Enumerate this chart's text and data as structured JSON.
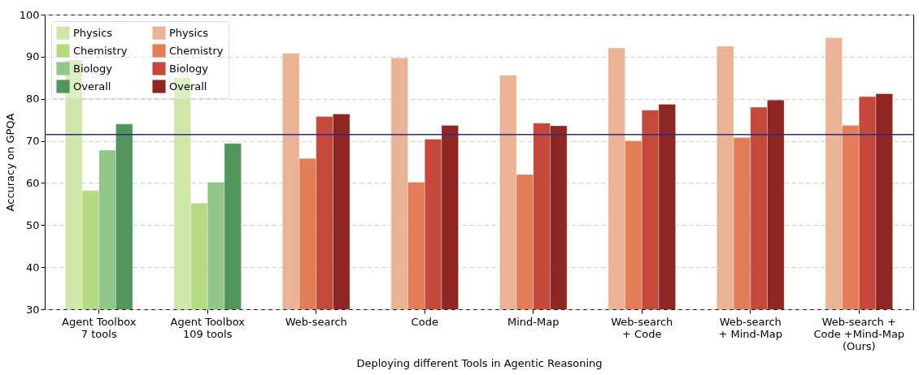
{
  "chart_data": {
    "type": "bar",
    "xlabel": "Deploying different Tools in Agentic Reasoning",
    "ylabel": "Accuracy on GPQA",
    "categories": [
      "Agent Toolbox\n7 tools",
      "Agent Toolbox\n109 tools",
      "Web-search",
      "Code",
      "Mind-Map",
      "Web-search\n+ Code",
      "Web-search\n+ Mind-Map",
      "Web-search +\nCode +Mind-Map\n(Ours)"
    ],
    "series": [
      {
        "name": "Physics",
        "color": "#cfe7a9",
        "values": [
          89.2,
          85.0,
          null,
          null,
          null,
          null,
          null,
          null
        ]
      },
      {
        "name": "Chemistry",
        "color": "#b4db82",
        "values": [
          58.2,
          55.2,
          null,
          null,
          null,
          null,
          null,
          null
        ]
      },
      {
        "name": "Biology",
        "color": "#92c68a",
        "values": [
          67.8,
          60.2,
          null,
          null,
          null,
          null,
          null,
          null
        ]
      },
      {
        "name": "Overall",
        "color": "#52955c",
        "values": [
          74.0,
          69.4,
          null,
          null,
          null,
          null,
          null,
          null
        ]
      },
      {
        "name": "Physics",
        "color": "#eab395",
        "values": [
          null,
          null,
          90.8,
          89.7,
          85.6,
          92.1,
          92.5,
          94.5
        ]
      },
      {
        "name": "Chemistry",
        "color": "#e27d57",
        "values": [
          null,
          null,
          65.8,
          60.2,
          62.0,
          70.0,
          70.8,
          73.7
        ]
      },
      {
        "name": "Biology",
        "color": "#c4493a",
        "values": [
          null,
          null,
          75.8,
          70.4,
          74.2,
          77.3,
          78.0,
          80.5
        ]
      },
      {
        "name": "Overall",
        "color": "#8e2724",
        "values": [
          null,
          null,
          76.4,
          73.7,
          73.6,
          78.7,
          79.7,
          81.2
        ]
      }
    ],
    "ylim": [
      30,
      100
    ],
    "yticks": [
      30,
      40,
      50,
      60,
      70,
      80,
      90,
      100
    ],
    "grid": "y",
    "legend": "top left",
    "ref_lines": [
      {
        "axis": "y",
        "value": 71.5,
        "color": "#2b2b8c"
      }
    ]
  }
}
